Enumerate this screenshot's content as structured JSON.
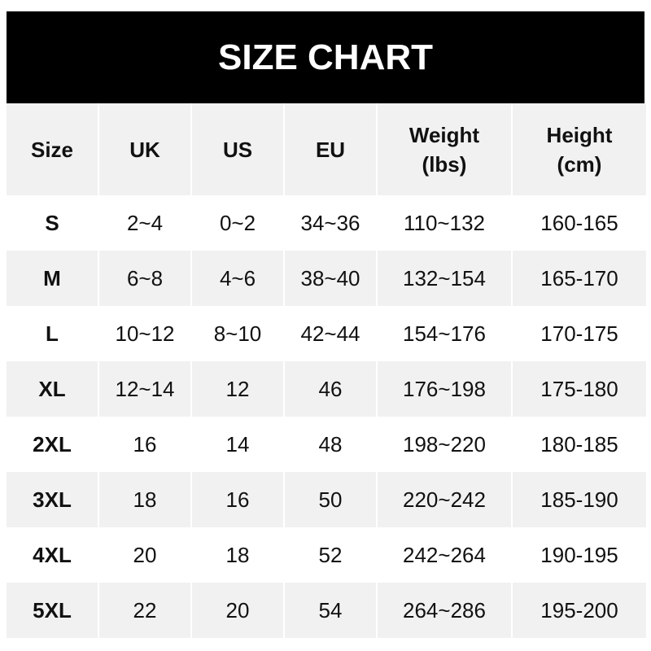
{
  "chart_data": {
    "type": "table",
    "title": "SIZE CHART",
    "columns": [
      "Size",
      "UK",
      "US",
      "EU",
      "Weight\n(lbs)",
      "Height\n(cm)"
    ],
    "rows": [
      [
        "S",
        "2~4",
        "0~2",
        "34~36",
        "110~132",
        "160-165"
      ],
      [
        "M",
        "6~8",
        "4~6",
        "38~40",
        "132~154",
        "165-170"
      ],
      [
        "L",
        "10~12",
        "8~10",
        "42~44",
        "154~176",
        "170-175"
      ],
      [
        "XL",
        "12~14",
        "12",
        "46",
        "176~198",
        "175-180"
      ],
      [
        "2XL",
        "16",
        "14",
        "48",
        "198~220",
        "180-185"
      ],
      [
        "3XL",
        "18",
        "16",
        "50",
        "220~242",
        "185-190"
      ],
      [
        "4XL",
        "20",
        "18",
        "52",
        "242~264",
        "190-195"
      ],
      [
        "5XL",
        "22",
        "20",
        "54",
        "264~286",
        "195-200"
      ]
    ]
  },
  "colors": {
    "title_bg": "#000000",
    "title_text": "#ffffff",
    "stripe": "#f1f1f1",
    "base": "#ffffff"
  }
}
